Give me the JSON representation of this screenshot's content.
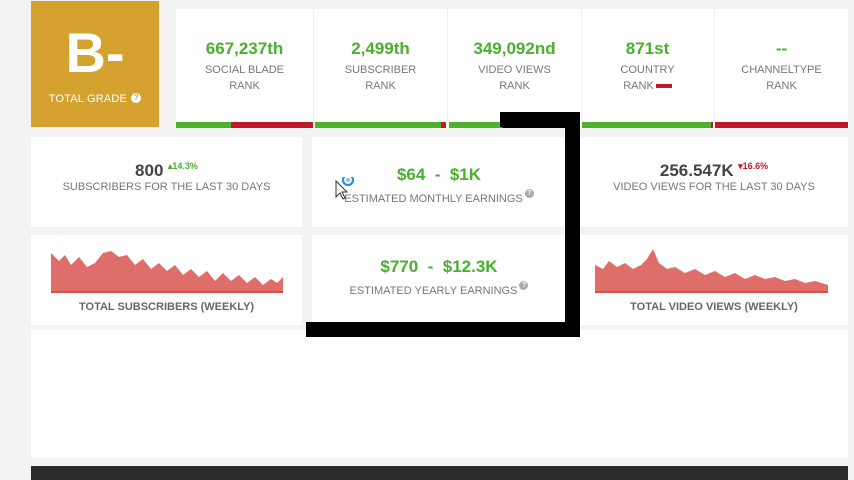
{
  "grade": {
    "letter": "B-",
    "label": "TOTAL GRADE",
    "help_glyph": "?"
  },
  "ranks": [
    {
      "value": "667,237th",
      "label_line1": "SOCIAL BLADE",
      "label_line2": "RANK",
      "green": 0.45
    },
    {
      "value": "2,499th",
      "label_line1": "SUBSCRIBER",
      "label_line2": "RANK",
      "green": 0.96
    },
    {
      "value": "349,092nd",
      "label_line1": "VIDEO VIEWS",
      "label_line2": "RANK",
      "green": 0.4
    },
    {
      "value": "871st",
      "label_line1": "COUNTRY",
      "label_line2": "RANK",
      "green": 0.98
    },
    {
      "value": "--",
      "label_line1": "CHANNELTYPE",
      "label_line2": "RANK",
      "green": 0
    }
  ],
  "subs30": {
    "value": "800",
    "pct": "14.3%",
    "label": "SUBSCRIBERS FOR THE LAST 30 DAYS"
  },
  "monthly": {
    "value": "$64  -  $1K",
    "label": "ESTIMATED MONTHLY EARNINGS"
  },
  "views30": {
    "value": "256.547K",
    "pct": "16.6%",
    "label": "VIDEO VIEWS FOR THE LAST 30 DAYS"
  },
  "total_subs": {
    "label": "TOTAL SUBSCRIBERS (WEEKLY)"
  },
  "yearly": {
    "value": "$770  -  $12.3K",
    "label": "ESTIMATED YEARLY EARNINGS"
  },
  "total_views": {
    "label": "TOTAL VIDEO VIEWS (WEEKLY)"
  },
  "colors": {
    "green": "#48b02c",
    "red": "#c0192d",
    "grade_bg": "#d5a12f",
    "spark": "#d9534f"
  },
  "icons": {
    "help": "question-circle-icon",
    "arrow_up": "triangle-up-icon",
    "arrow_down": "triangle-down-icon"
  }
}
